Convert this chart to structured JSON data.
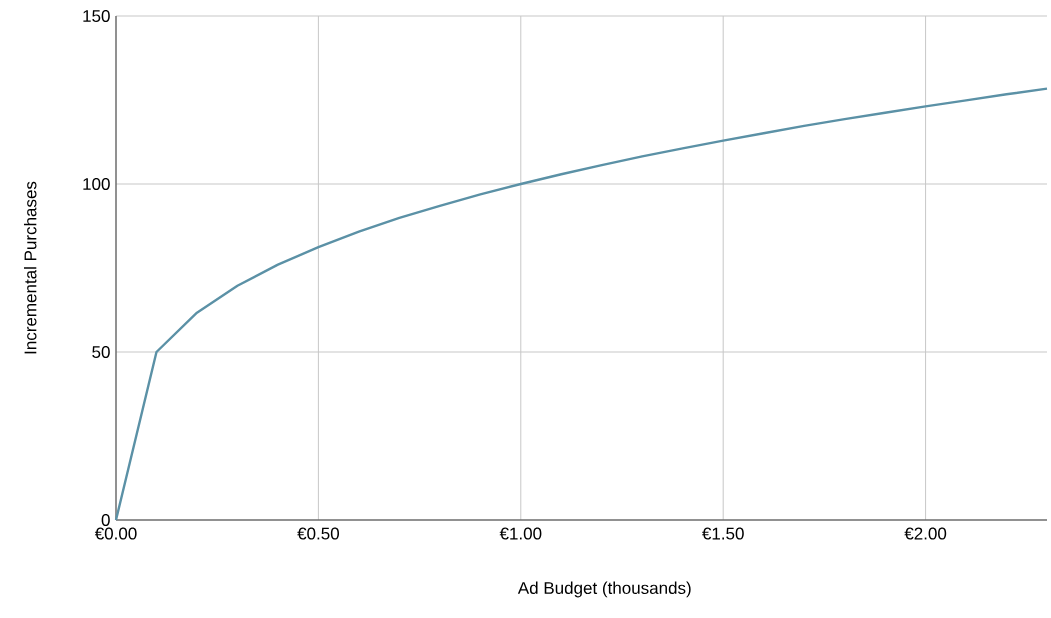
{
  "chart_data": {
    "type": "line",
    "xlabel": "Ad Budget (thousands)",
    "ylabel": "Incremental Purchases",
    "x": [
      0,
      0.1,
      0.2,
      0.3,
      0.4,
      0.5,
      0.6,
      0.7,
      0.8,
      0.9,
      1.0,
      1.1,
      1.2,
      1.3,
      1.4,
      1.5,
      1.6,
      1.7,
      1.8,
      1.9,
      2.0,
      2.1,
      2.2,
      2.3
    ],
    "series": [
      {
        "color": "#5b91a6",
        "values": [
          0,
          50,
          61.7,
          69.7,
          76,
          81.2,
          85.8,
          89.9,
          93.5,
          96.9,
          100,
          102.9,
          105.6,
          108.2,
          110.6,
          112.9,
          115.1,
          117.3,
          119.3,
          121.2,
          123.1,
          124.9,
          126.7,
          128.4
        ]
      }
    ],
    "xlim": [
      0,
      2.3
    ],
    "ylim": [
      0,
      150
    ],
    "xticks": [
      {
        "value": 0,
        "label": "€0.00"
      },
      {
        "value": 0.5,
        "label": "€0.50"
      },
      {
        "value": 1.0,
        "label": "€1.00"
      },
      {
        "value": 1.5,
        "label": "€1.50"
      },
      {
        "value": 2.0,
        "label": "€2.00"
      }
    ],
    "yticks": [
      0,
      50,
      100,
      150
    ],
    "grid": true
  }
}
